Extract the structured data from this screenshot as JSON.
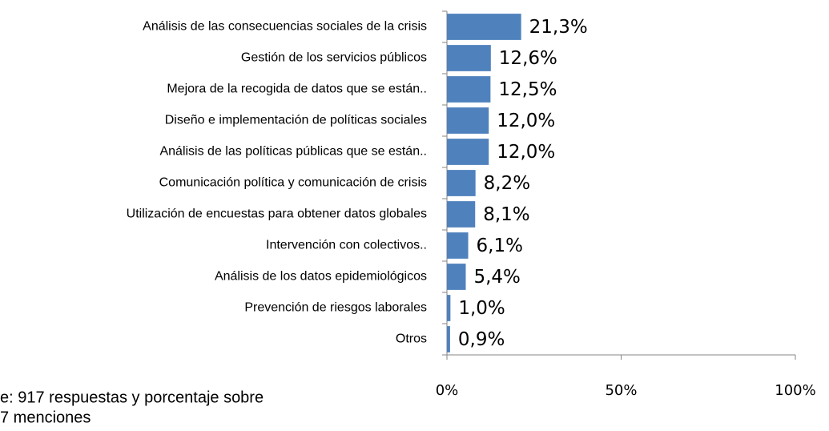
{
  "chart_data": {
    "type": "hbar",
    "categories": [
      "Análisis de las consecuencias sociales de la crisis",
      "Gestión de los servicios públicos",
      "Mejora de la recogida de datos que se están..",
      "Diseño e implementación de políticas sociales",
      "Análisis de las políticas públicas que se están..",
      "Comunicación política y comunicación de crisis",
      "Utilización de encuestas para obtener datos globales",
      "Intervención con colectivos..",
      "Análisis de los datos epidemiológicos",
      "Prevención de riesgos laborales",
      "Otros"
    ],
    "values": [
      21.3,
      12.6,
      12.5,
      12.0,
      12.0,
      8.2,
      8.1,
      6.1,
      5.4,
      1.0,
      0.9
    ],
    "value_labels": [
      "21,3%",
      "12,6%",
      "12,5%",
      "12,0%",
      "12,0%",
      "8,2%",
      "8,1%",
      "6,1%",
      "5,4%",
      "1,0%",
      "0,9%"
    ],
    "color": "#4f81bd",
    "xlim": [
      0,
      100
    ],
    "xticks": [
      {
        "value": 0,
        "label": "0%"
      },
      {
        "value": 50,
        "label": "50%"
      },
      {
        "value": 100,
        "label": "100%"
      }
    ],
    "note": [
      "e: 917 respuestas y porcentaje sobre",
      "7 menciones"
    ]
  }
}
